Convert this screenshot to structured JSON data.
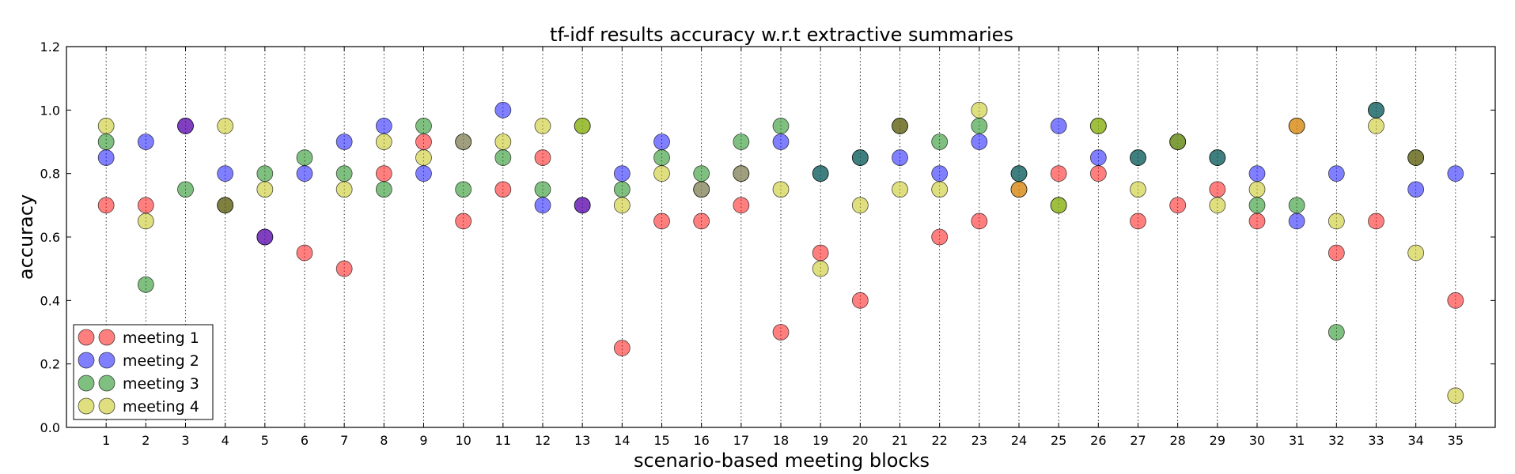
{
  "chart_data": {
    "type": "scatter",
    "title": "tf-idf results accuracy w.r.t extractive summaries",
    "xlabel": "scenario-based meeting blocks",
    "ylabel": "accuracy",
    "xlim": [
      0,
      36
    ],
    "ylim": [
      0.0,
      1.2
    ],
    "x_ticks": [
      "1",
      "2",
      "3",
      "4",
      "5",
      "6",
      "7",
      "8",
      "9",
      "10",
      "11",
      "12",
      "13",
      "14",
      "15",
      "16",
      "17",
      "18",
      "19",
      "20",
      "21",
      "22",
      "23",
      "24",
      "25",
      "26",
      "27",
      "28",
      "29",
      "30",
      "31",
      "32",
      "33",
      "34",
      "35"
    ],
    "y_ticks": [
      "0.0",
      "0.2",
      "0.4",
      "0.6",
      "0.8",
      "1.0",
      "1.2"
    ],
    "grid": "vertical dotted at each x tick",
    "legend_position": "lower-left",
    "series": [
      {
        "name": "meeting 1",
        "color": "#ff0000",
        "x": [
          1,
          2,
          3,
          4,
          5,
          6,
          7,
          8,
          9,
          10,
          11,
          12,
          13,
          14,
          15,
          16,
          17,
          18,
          19,
          20,
          21,
          22,
          23,
          24,
          25,
          26,
          27,
          28,
          29,
          30,
          31,
          32,
          33,
          34,
          35
        ],
        "values": [
          0.7,
          0.7,
          0.95,
          0.7,
          0.6,
          0.55,
          0.5,
          0.8,
          0.9,
          0.65,
          0.75,
          0.85,
          0.7,
          0.25,
          0.65,
          0.65,
          0.7,
          0.3,
          0.55,
          0.4,
          0.95,
          0.6,
          0.65,
          0.75,
          0.8,
          0.8,
          0.65,
          0.7,
          0.75,
          0.65,
          0.95,
          0.55,
          0.65,
          0.85,
          0.4
        ]
      },
      {
        "name": "meeting 2",
        "color": "#0000ff",
        "x": [
          1,
          2,
          3,
          4,
          5,
          6,
          7,
          8,
          9,
          10,
          11,
          12,
          13,
          14,
          15,
          16,
          17,
          18,
          19,
          20,
          21,
          22,
          23,
          24,
          25,
          26,
          27,
          28,
          29,
          30,
          31,
          32,
          33,
          34,
          35
        ],
        "values": [
          0.85,
          0.9,
          0.95,
          0.8,
          0.6,
          0.8,
          0.9,
          0.95,
          0.8,
          0.9,
          1.0,
          0.7,
          0.7,
          0.8,
          0.9,
          0.75,
          0.8,
          0.9,
          0.8,
          0.85,
          0.85,
          0.8,
          0.9,
          0.8,
          0.95,
          0.85,
          0.85,
          0.9,
          0.85,
          0.8,
          0.65,
          0.8,
          1.0,
          0.75,
          0.8
        ]
      },
      {
        "name": "meeting 3",
        "color": "#008000",
        "x": [
          1,
          2,
          3,
          4,
          5,
          6,
          7,
          8,
          9,
          10,
          11,
          12,
          13,
          14,
          15,
          16,
          17,
          18,
          19,
          20,
          21,
          22,
          23,
          24,
          25,
          26,
          27,
          28,
          29,
          30,
          31,
          32,
          33,
          34,
          35
        ],
        "values": [
          0.9,
          0.45,
          0.75,
          0.7,
          0.8,
          0.85,
          0.8,
          0.75,
          0.95,
          0.75,
          0.85,
          0.75,
          0.95,
          0.75,
          0.85,
          0.8,
          0.9,
          0.95,
          0.8,
          0.85,
          0.95,
          0.9,
          0.95,
          0.8,
          0.7,
          0.95,
          0.85,
          0.9,
          0.85,
          0.7,
          0.7,
          0.3,
          1.0,
          0.85,
          null
        ]
      },
      {
        "name": "meeting 4",
        "color": "#bfbf00",
        "x": [
          1,
          2,
          3,
          4,
          5,
          6,
          7,
          8,
          9,
          10,
          11,
          12,
          13,
          14,
          15,
          16,
          17,
          18,
          19,
          20,
          21,
          22,
          23,
          24,
          25,
          26,
          27,
          28,
          29,
          30,
          31,
          32,
          33,
          34,
          35
        ],
        "values": [
          0.95,
          0.65,
          null,
          0.95,
          0.75,
          null,
          0.75,
          0.9,
          0.85,
          0.9,
          0.9,
          0.95,
          0.95,
          0.7,
          0.8,
          0.75,
          0.8,
          0.75,
          0.5,
          0.7,
          0.75,
          0.75,
          1.0,
          0.75,
          0.7,
          0.95,
          0.75,
          0.9,
          0.7,
          0.75,
          0.95,
          0.65,
          0.95,
          0.55,
          0.1
        ]
      }
    ]
  }
}
